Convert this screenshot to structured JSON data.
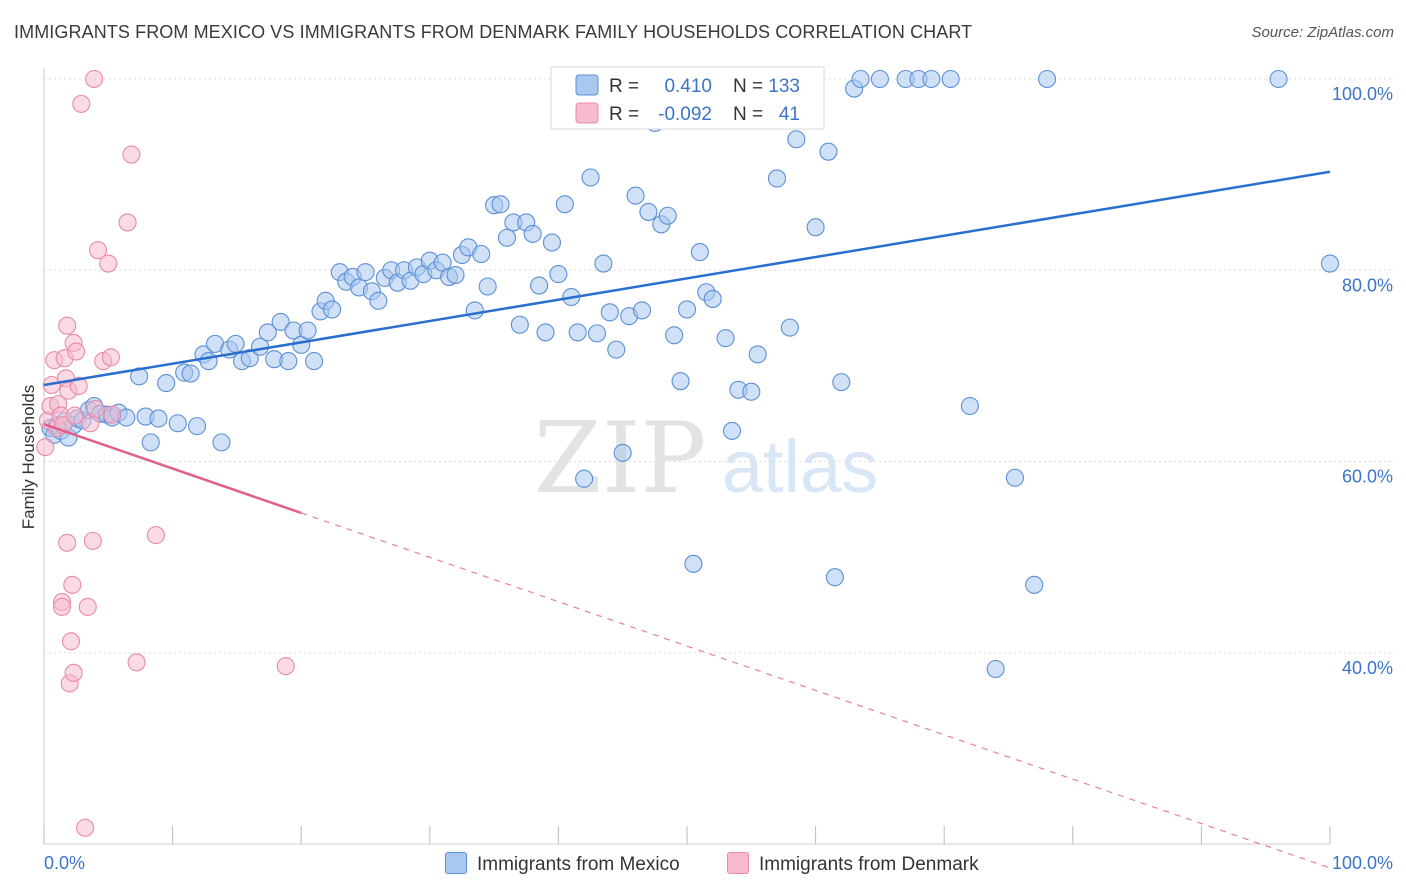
{
  "title": "IMMIGRANTS FROM MEXICO VS IMMIGRANTS FROM DENMARK FAMILY HOUSEHOLDS CORRELATION CHART",
  "source": "Source: ZipAtlas.com",
  "watermark": {
    "zip": "ZIP",
    "atlas": "atlas"
  },
  "colors": {
    "mexico_fill": "#a9c8f0",
    "mexico_stroke": "#5b8fd6",
    "mexico_line": "#2a6fcf",
    "denmark_fill": "#f6bccd",
    "denmark_stroke": "#e88aa8",
    "denmark_line": "#e0608a",
    "axis_label": "#3b75c9"
  },
  "stats_legend": {
    "rows": [
      {
        "r_label": "R =",
        "r_value": "0.410",
        "n_label": "N =",
        "n_value": "133"
      },
      {
        "r_label": "R =",
        "r_value": "-0.092",
        "n_label": "N =",
        "n_value": "41"
      }
    ]
  },
  "bottom_legend": {
    "mexico": "Immigrants from Mexico",
    "denmark": "Immigrants from Denmark"
  },
  "chart_data": {
    "type": "scatter",
    "title": "IMMIGRANTS FROM MEXICO VS IMMIGRANTS FROM DENMARK FAMILY HOUSEHOLDS CORRELATION CHART",
    "xlabel": "",
    "ylabel": "Family Households",
    "xlim": [
      0,
      100
    ],
    "ylim": [
      20,
      102
    ],
    "x_tick_labels": [
      "0.0%",
      "100.0%"
    ],
    "y_ticks": [
      40,
      60,
      80,
      100
    ],
    "y_tick_labels": [
      "40.0%",
      "60.0%",
      "80.0%",
      "100.0%"
    ],
    "grid": true,
    "legend_position": "top-center",
    "series": [
      {
        "name": "Immigrants from Mexico",
        "r": 0.41,
        "n": 133,
        "trend": {
          "x": [
            0,
            100
          ],
          "y": [
            68.0,
            90.3
          ],
          "dashed_from_x": null
        },
        "points": [
          [
            0.5,
            63.5
          ],
          [
            0.8,
            62.8
          ],
          [
            1.0,
            63.8
          ],
          [
            1.3,
            63.2
          ],
          [
            1.6,
            64.2
          ],
          [
            1.9,
            62.5
          ],
          [
            2.3,
            63.8
          ],
          [
            2.6,
            64.5
          ],
          [
            3.0,
            64.3
          ],
          [
            3.5,
            65.4
          ],
          [
            3.9,
            65.8
          ],
          [
            4.4,
            65.0
          ],
          [
            4.9,
            64.9
          ],
          [
            5.3,
            64.6
          ],
          [
            5.8,
            65.1
          ],
          [
            6.4,
            64.6
          ],
          [
            7.4,
            68.9
          ],
          [
            7.9,
            64.7
          ],
          [
            8.3,
            62.0
          ],
          [
            8.9,
            64.5
          ],
          [
            9.5,
            68.2
          ],
          [
            10.4,
            64.0
          ],
          [
            10.9,
            69.3
          ],
          [
            11.4,
            69.2
          ],
          [
            11.9,
            63.7
          ],
          [
            12.4,
            71.2
          ],
          [
            12.8,
            70.5
          ],
          [
            13.3,
            72.3
          ],
          [
            13.8,
            62.0
          ],
          [
            14.4,
            71.7
          ],
          [
            14.9,
            72.3
          ],
          [
            15.4,
            70.5
          ],
          [
            16.0,
            70.8
          ],
          [
            16.8,
            72.0
          ],
          [
            17.4,
            73.5
          ],
          [
            17.9,
            70.7
          ],
          [
            18.4,
            74.6
          ],
          [
            19.0,
            70.5
          ],
          [
            19.4,
            73.7
          ],
          [
            20.0,
            72.2
          ],
          [
            20.5,
            73.7
          ],
          [
            21.0,
            70.5
          ],
          [
            21.5,
            75.7
          ],
          [
            21.9,
            76.8
          ],
          [
            22.4,
            75.9
          ],
          [
            23.0,
            79.8
          ],
          [
            23.5,
            78.8
          ],
          [
            24.0,
            79.3
          ],
          [
            24.5,
            78.2
          ],
          [
            25.0,
            79.8
          ],
          [
            25.5,
            77.8
          ],
          [
            26.0,
            76.8
          ],
          [
            26.5,
            79.2
          ],
          [
            27.0,
            80.0
          ],
          [
            27.5,
            78.7
          ],
          [
            28.0,
            80.0
          ],
          [
            28.5,
            78.9
          ],
          [
            29.0,
            80.3
          ],
          [
            29.5,
            79.6
          ],
          [
            30.0,
            81.0
          ],
          [
            30.5,
            80.0
          ],
          [
            31.0,
            80.8
          ],
          [
            31.5,
            79.3
          ],
          [
            32.0,
            79.5
          ],
          [
            32.5,
            81.6
          ],
          [
            33.0,
            82.4
          ],
          [
            33.5,
            75.8
          ],
          [
            34.0,
            81.7
          ],
          [
            34.5,
            78.3
          ],
          [
            35.0,
            86.8
          ],
          [
            35.5,
            86.9
          ],
          [
            36.0,
            83.4
          ],
          [
            36.5,
            85.0
          ],
          [
            37.0,
            74.3
          ],
          [
            37.5,
            85.0
          ],
          [
            38.0,
            83.8
          ],
          [
            38.5,
            78.4
          ],
          [
            39.0,
            73.5
          ],
          [
            39.5,
            82.9
          ],
          [
            40.0,
            79.6
          ],
          [
            40.5,
            86.9
          ],
          [
            41.0,
            77.2
          ],
          [
            41.5,
            73.5
          ],
          [
            42.0,
            58.2
          ],
          [
            42.5,
            89.7
          ],
          [
            43.0,
            73.4
          ],
          [
            43.5,
            80.7
          ],
          [
            44.0,
            75.6
          ],
          [
            44.5,
            71.7
          ],
          [
            45.0,
            60.9
          ],
          [
            45.5,
            75.2
          ],
          [
            46.0,
            87.8
          ],
          [
            46.5,
            75.8
          ],
          [
            47.0,
            86.1
          ],
          [
            47.5,
            95.4
          ],
          [
            48.0,
            84.8
          ],
          [
            48.5,
            85.7
          ],
          [
            49.0,
            73.2
          ],
          [
            49.5,
            68.4
          ],
          [
            50.0,
            75.9
          ],
          [
            50.5,
            49.3
          ],
          [
            51.0,
            81.9
          ],
          [
            51.5,
            77.7
          ],
          [
            52.0,
            77.0
          ],
          [
            53.0,
            72.9
          ],
          [
            53.5,
            63.2
          ],
          [
            54.0,
            67.5
          ],
          [
            54.5,
            100.0
          ],
          [
            55.0,
            67.3
          ],
          [
            55.5,
            71.2
          ],
          [
            56.0,
            100.0
          ],
          [
            57.0,
            89.6
          ],
          [
            58.0,
            74.0
          ],
          [
            58.5,
            93.7
          ],
          [
            59.0,
            100.0
          ],
          [
            60.0,
            84.5
          ],
          [
            61.0,
            92.4
          ],
          [
            61.5,
            47.9
          ],
          [
            62.0,
            68.3
          ],
          [
            63.0,
            99.0
          ],
          [
            63.5,
            100.0
          ],
          [
            65.0,
            100.0
          ],
          [
            67.0,
            100.0
          ],
          [
            68.0,
            100.0
          ],
          [
            69.0,
            100.0
          ],
          [
            70.5,
            100.0
          ],
          [
            72.0,
            65.8
          ],
          [
            74.0,
            38.3
          ],
          [
            75.5,
            58.3
          ],
          [
            77.0,
            47.1
          ],
          [
            78.0,
            100.0
          ],
          [
            96.0,
            100.0
          ],
          [
            100.0,
            80.7
          ]
        ]
      },
      {
        "name": "Immigrants from Denmark",
        "r": -0.092,
        "n": 41,
        "trend": {
          "x": [
            0,
            100
          ],
          "y": [
            63.9,
            17.5
          ],
          "dashed_from_x": 20.0
        },
        "points": [
          [
            0.1,
            61.5
          ],
          [
            0.3,
            64.3
          ],
          [
            0.5,
            65.8
          ],
          [
            0.6,
            68.0
          ],
          [
            0.8,
            70.6
          ],
          [
            1.0,
            63.5
          ],
          [
            1.1,
            66.0
          ],
          [
            1.3,
            64.8
          ],
          [
            1.4,
            45.3
          ],
          [
            1.4,
            44.8
          ],
          [
            1.5,
            63.8
          ],
          [
            1.6,
            70.8
          ],
          [
            1.7,
            68.7
          ],
          [
            1.8,
            74.2
          ],
          [
            1.8,
            51.5
          ],
          [
            1.9,
            67.4
          ],
          [
            2.0,
            36.8
          ],
          [
            2.1,
            41.2
          ],
          [
            2.2,
            47.1
          ],
          [
            2.3,
            72.4
          ],
          [
            2.3,
            37.9
          ],
          [
            2.4,
            64.8
          ],
          [
            2.5,
            71.5
          ],
          [
            2.7,
            67.9
          ],
          [
            2.9,
            97.4
          ],
          [
            3.2,
            21.7
          ],
          [
            3.4,
            44.8
          ],
          [
            3.6,
            64.0
          ],
          [
            3.8,
            51.7
          ],
          [
            3.9,
            100.0
          ],
          [
            4.0,
            65.5
          ],
          [
            4.2,
            82.1
          ],
          [
            4.6,
            70.5
          ],
          [
            5.0,
            80.7
          ],
          [
            5.2,
            70.9
          ],
          [
            5.3,
            64.9
          ],
          [
            6.5,
            85.0
          ],
          [
            6.8,
            92.1
          ],
          [
            7.2,
            39.0
          ],
          [
            8.7,
            52.3
          ],
          [
            18.8,
            38.6
          ]
        ]
      }
    ]
  }
}
